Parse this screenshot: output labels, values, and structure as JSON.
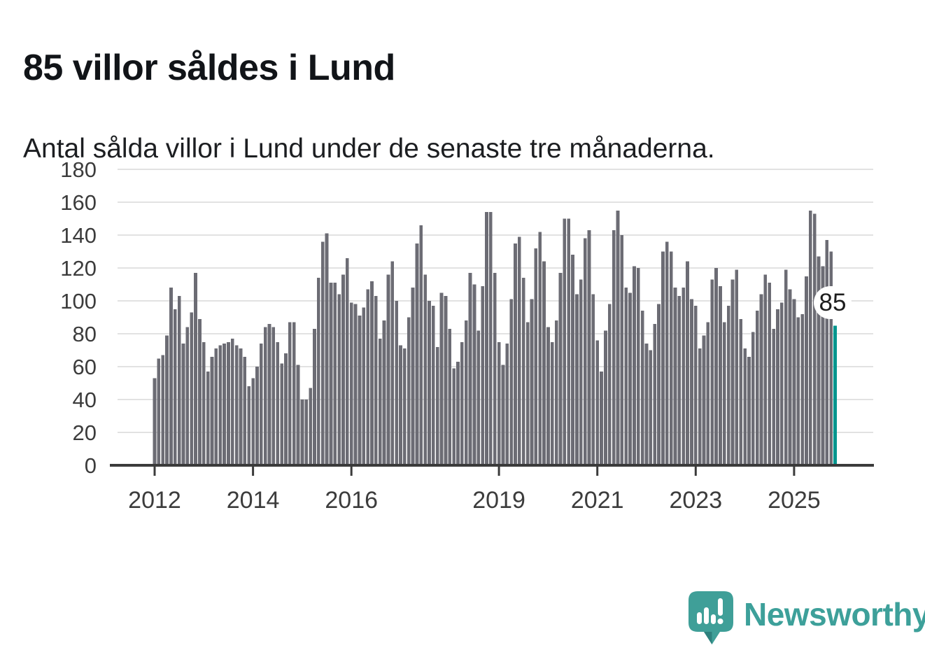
{
  "header": {
    "title": "85 villor såldes i Lund",
    "subtitle": "Antal sålda villor i Lund under de senaste tre månaderna."
  },
  "annotation": {
    "value_label": "85"
  },
  "footer": {
    "brand": "Newsworthy",
    "logo_icon": "newsworthy-speech-bubble-bar-chart-icon",
    "brand_color": "#3da09a"
  },
  "chart_data": {
    "type": "bar",
    "title": "85 villor såldes i Lund",
    "subtitle": "Antal sålda villor i Lund under de senaste tre månaderna.",
    "ylabel": "",
    "xlabel": "",
    "ylim": [
      0,
      180
    ],
    "grid": true,
    "y_ticks": [
      0,
      20,
      40,
      60,
      80,
      100,
      120,
      140,
      160,
      180
    ],
    "x_tick_years": [
      2012,
      2014,
      2016,
      2019,
      2021,
      2023,
      2025
    ],
    "x_monthly_from": "2012-01",
    "x_monthly_to": "2025-11",
    "highlight_last_bar": true,
    "highlight_label": "85",
    "colors": {
      "bar": "#6c6c74",
      "highlight": "#00958e",
      "grid": "#e2e2e2",
      "axis": "#3b3b3b",
      "tick_text": "#3c3c3c"
    },
    "series": [
      {
        "name": "Antal sålda villor, rullande tre månader",
        "start_year": 2012,
        "start_month": 1,
        "values": [
          53,
          65,
          67,
          79,
          108,
          95,
          103,
          74,
          84,
          93,
          117,
          89,
          75,
          57,
          66,
          71,
          73,
          74,
          75,
          77,
          73,
          71,
          66,
          48,
          53,
          60,
          74,
          84,
          86,
          84,
          75,
          62,
          68,
          87,
          87,
          61,
          40,
          40,
          47,
          83,
          114,
          136,
          141,
          111,
          111,
          104,
          116,
          126,
          99,
          98,
          91,
          96,
          107,
          112,
          103,
          77,
          88,
          116,
          124,
          100,
          73,
          71,
          90,
          108,
          135,
          146,
          116,
          100,
          97,
          72,
          105,
          103,
          83,
          59,
          63,
          75,
          88,
          117,
          110,
          82,
          109,
          154,
          154,
          117,
          75,
          61,
          74,
          101,
          135,
          139,
          114,
          87,
          101,
          132,
          142,
          124,
          84,
          75,
          88,
          117,
          150,
          150,
          128,
          104,
          113,
          138,
          143,
          104,
          76,
          57,
          82,
          98,
          143,
          155,
          140,
          108,
          105,
          121,
          120,
          94,
          74,
          70,
          86,
          98,
          130,
          136,
          130,
          108,
          103,
          108,
          124,
          101,
          97,
          71,
          79,
          87,
          113,
          120,
          109,
          87,
          97,
          113,
          119,
          89,
          71,
          66,
          81,
          94,
          104,
          116,
          111,
          83,
          95,
          99,
          119,
          107,
          101,
          90,
          92,
          115,
          155,
          153,
          127,
          121,
          137,
          130,
          85
        ]
      }
    ]
  }
}
